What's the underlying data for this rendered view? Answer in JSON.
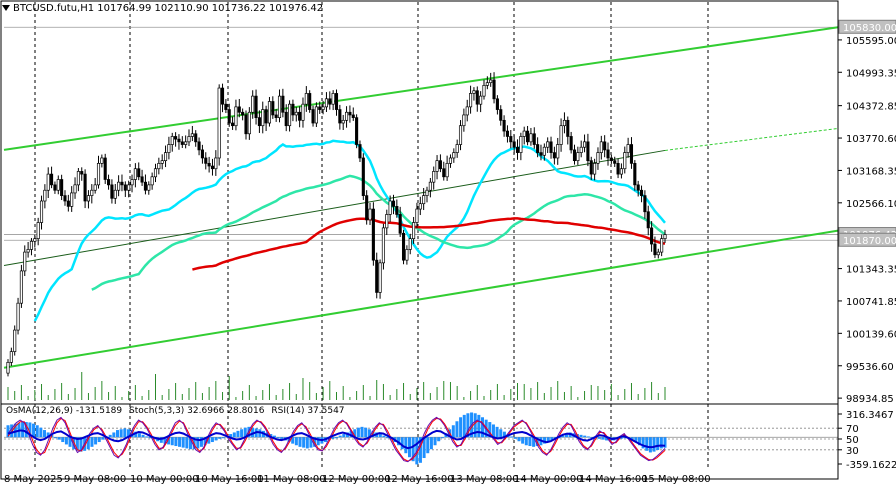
{
  "header": {
    "symbol": "BTCUSD.futu,H1",
    "ohlc": "101764.99 102110.90 101736.22 101976.42"
  },
  "indicators": {
    "osma": "OsMA(12,26,9) -131.5189",
    "stoch": "Stoch(5,3,3) 32.6966 28.8016",
    "rsi": "RSI(14) 37.5547"
  },
  "colors": {
    "bg": "#ffffff",
    "candle": "#000000",
    "grid": "#000000",
    "channel_green": "#32cd32",
    "ma_fast": "#00e5ff",
    "ma_mid": "#2ee6a8",
    "ma_slow": "#e00000",
    "osma_hist": "#1e90ff",
    "stoch_main": "#0000cd",
    "stoch_signal": "#ff0000",
    "rsi_line": "#6a0dad"
  },
  "chart_data": {
    "type": "candlestick",
    "title": "BTCUSD.futu,H1",
    "y_ticks": [
      "105830.00",
      "105595.00",
      "104993.35",
      "104372.85",
      "103770.60",
      "103168.35",
      "102566.10",
      "101976.42",
      "101870.00",
      "101343.35",
      "100741.85",
      "100139.60",
      "99536.60",
      "98934.85"
    ],
    "price_labels": [
      "105830.00",
      "101976.42",
      "101870.00"
    ],
    "x_ticks": [
      "8 May 2025",
      "9 May 08:00",
      "10 May 00:00",
      "10 May 16:00",
      "11 May 08:00",
      "12 May 00:00",
      "12 May 16:00",
      "13 May 08:00",
      "14 May 00:00",
      "14 May 16:00",
      "15 May 08:00"
    ],
    "ylim": [
      98900,
      106300
    ],
    "closes": [
      99600,
      99800,
      100200,
      100700,
      101300,
      101650,
      101700,
      101850,
      101900,
      102200,
      102600,
      102800,
      103100,
      102900,
      102800,
      103000,
      102700,
      102600,
      102500,
      102750,
      102900,
      103150,
      103100,
      102600,
      102700,
      102800,
      102900,
      103300,
      103400,
      103000,
      102900,
      102650,
      102800,
      102950,
      102900,
      102800,
      102900,
      103000,
      103200,
      103050,
      102950,
      102800,
      102900,
      103050,
      103200,
      103300,
      103350,
      103500,
      103650,
      103800,
      103750,
      103700,
      103650,
      103700,
      103800,
      103850,
      103700,
      103550,
      103400,
      103300,
      103250,
      103200,
      103400,
      104700,
      104400,
      104300,
      104050,
      104000,
      104350,
      104250,
      104200,
      103850,
      104250,
      104550,
      104150,
      104000,
      104300,
      104050,
      104450,
      104200,
      104150,
      104550,
      104250,
      104000,
      104400,
      104200,
      104250,
      104100,
      104400,
      104600,
      104300,
      104050,
      104350,
      104300,
      104350,
      104500,
      104400,
      104600,
      104300,
      104050,
      104100,
      104250,
      104200,
      104150,
      103650,
      103400,
      102700,
      102250,
      102450,
      101500,
      100900,
      101450,
      102100,
      102350,
      102600,
      102500,
      102350,
      102000,
      101500,
      101700,
      101900,
      102200,
      102450,
      102550,
      102700,
      102800,
      102950,
      103150,
      103350,
      103200,
      103050,
      103300,
      103400,
      103500,
      103650,
      104000,
      104200,
      104350,
      104600,
      104650,
      104400,
      104550,
      104750,
      104800,
      104850,
      104500,
      104300,
      104100,
      103900,
      103800,
      103700,
      103600,
      103500,
      103800,
      103900,
      103700,
      103850,
      103650,
      103500,
      103450,
      103600,
      103700,
      103500,
      103400,
      103650,
      104000,
      104100,
      103800,
      103550,
      103350,
      103500,
      103600,
      103700,
      103350,
      103100,
      103300,
      103500,
      103700,
      103550,
      103400,
      103350,
      103300,
      103100,
      103200,
      103500,
      103650,
      103300,
      102900,
      102800,
      102700,
      102400,
      102100,
      101800,
      101600,
      101650,
      101900,
      101976
    ],
    "osma": [
      150,
      160,
      170,
      180,
      190,
      190,
      185,
      170,
      150,
      120,
      90,
      60,
      30,
      0,
      -30,
      -60,
      -90,
      -120,
      -150,
      -170,
      -180,
      -170,
      -150,
      -120,
      -90,
      -60,
      -30,
      0,
      30,
      60,
      90,
      100,
      110,
      100,
      90,
      70,
      50,
      30,
      10,
      -10,
      -30,
      -50,
      -70,
      -80,
      -90,
      -100,
      -110,
      -120,
      -130,
      -140,
      -150,
      -150,
      -140,
      -120,
      -100,
      -80,
      -60,
      -40,
      -20,
      0,
      20,
      40,
      60,
      80,
      100,
      120,
      130,
      120,
      110,
      100,
      80,
      60,
      40,
      20,
      0,
      -20,
      -40,
      -60,
      -80,
      -100,
      -120,
      -130,
      -140,
      -130,
      -120,
      -100,
      -80,
      -60,
      -40,
      -20,
      0,
      20,
      40,
      60,
      80,
      100,
      120,
      130,
      120,
      100,
      80,
      60,
      40,
      20,
      0,
      -20,
      -60,
      -100,
      -150,
      -200,
      -250,
      -300,
      -340,
      -320,
      -260,
      -200,
      -150,
      -100,
      -50,
      0,
      50,
      100,
      150,
      200,
      250,
      280,
      300,
      310,
      300,
      280,
      250,
      220,
      190,
      160,
      130,
      100,
      70,
      40,
      10,
      -20,
      -50,
      -80,
      -100,
      -110,
      -120,
      -110,
      -100,
      -80,
      -60,
      -40,
      -20,
      0,
      20,
      40,
      60,
      50,
      40,
      30,
      20,
      10,
      0,
      -10,
      -20,
      -30,
      -40,
      -50,
      -40,
      -30,
      -20,
      -10,
      0,
      -20,
      -60,
      -100,
      -140,
      -170,
      -190,
      -180,
      -160,
      -140,
      -131.5189
    ],
    "stoch_main": [
      60,
      70,
      80,
      85,
      80,
      60,
      40,
      25,
      20,
      30,
      50,
      70,
      85,
      90,
      80,
      60,
      40,
      25,
      30,
      45,
      60,
      70,
      75,
      65,
      50,
      35,
      20,
      15,
      25,
      40,
      60,
      75,
      85,
      80,
      70,
      55,
      40,
      30,
      35,
      50,
      65,
      80,
      85,
      78,
      60,
      45,
      30,
      25,
      35,
      55,
      70,
      80,
      75,
      65,
      50,
      40,
      30,
      35,
      50,
      65,
      78,
      85,
      80,
      70,
      55,
      40,
      30,
      25,
      35,
      50,
      65,
      75,
      80,
      70,
      55,
      40,
      30,
      28,
      40,
      55,
      70,
      80,
      85,
      78,
      65,
      50,
      40,
      35,
      45,
      60,
      72,
      80,
      75,
      60,
      45,
      30,
      20,
      10,
      8,
      15,
      25,
      40,
      60,
      75,
      85,
      90,
      85,
      75,
      60,
      45,
      35,
      40,
      55,
      70,
      80,
      85,
      80,
      70,
      60,
      50,
      40,
      45,
      55,
      65,
      75,
      80,
      85,
      78,
      65,
      50,
      35,
      25,
      20,
      30,
      45,
      60,
      72,
      80,
      75,
      60,
      45,
      35,
      30,
      40,
      55,
      65,
      60,
      50,
      40,
      45,
      55,
      60,
      50,
      40,
      30,
      20,
      15,
      10,
      12,
      18,
      25,
      32.6966
    ],
    "stoch_signal": [
      55,
      65,
      75,
      82,
      82,
      68,
      48,
      30,
      22,
      25,
      42,
      62,
      80,
      88,
      84,
      66,
      46,
      30,
      28,
      40,
      55,
      67,
      73,
      68,
      55,
      40,
      25,
      17,
      22,
      35,
      53,
      70,
      82,
      82,
      73,
      60,
      45,
      33,
      33,
      45,
      60,
      75,
      83,
      80,
      65,
      50,
      35,
      27,
      32,
      50,
      65,
      77,
      77,
      68,
      55,
      43,
      33,
      33,
      45,
      60,
      74,
      83,
      82,
      73,
      60,
      45,
      33,
      27,
      32,
      45,
      60,
      72,
      78,
      73,
      60,
      45,
      33,
      28,
      36,
      50,
      65,
      77,
      83,
      80,
      68,
      55,
      43,
      37,
      42,
      55,
      68,
      78,
      77,
      65,
      50,
      35,
      23,
      13,
      9,
      12,
      21,
      35,
      53,
      70,
      82,
      88,
      87,
      78,
      65,
      50,
      38,
      38,
      50,
      65,
      76,
      83,
      82,
      73,
      63,
      53,
      43,
      43,
      52,
      62,
      72,
      78,
      83,
      80,
      68,
      55,
      40,
      28,
      22,
      27,
      40,
      55,
      68,
      77,
      77,
      65,
      50,
      38,
      32,
      37,
      50,
      62,
      62,
      53,
      43,
      43,
      52,
      58,
      53,
      43,
      33,
      23,
      17,
      12,
      11,
      15,
      22,
      28.8016
    ],
    "rsi": [
      60,
      62,
      64,
      66,
      65,
      60,
      55,
      50,
      48,
      50,
      55,
      60,
      63,
      64,
      60,
      55,
      52,
      50,
      51,
      54,
      57,
      60,
      61,
      58,
      54,
      50,
      47,
      46,
      48,
      52,
      56,
      60,
      63,
      62,
      59,
      55,
      52,
      50,
      51,
      54,
      58,
      61,
      62,
      60,
      56,
      52,
      49,
      48,
      50,
      54,
      58,
      61,
      60,
      57,
      54,
      51,
      49,
      50,
      53,
      57,
      60,
      63,
      62,
      59,
      55,
      52,
      49,
      48,
      50,
      53,
      57,
      60,
      61,
      58,
      54,
      51,
      49,
      48,
      50,
      54,
      57,
      60,
      62,
      60,
      57,
      53,
      50,
      49,
      51,
      55,
      58,
      61,
      60,
      56,
      52,
      47,
      42,
      36,
      33,
      35,
      40,
      46,
      52,
      57,
      62,
      65,
      64,
      60,
      56,
      52,
      49,
      50,
      54,
      58,
      61,
      63,
      62,
      59,
      56,
      53,
      51,
      52,
      55,
      58,
      61,
      62,
      63,
      61,
      57,
      53,
      49,
      46,
      44,
      46,
      50,
      54,
      58,
      60,
      59,
      55,
      51,
      48,
      47,
      50,
      54,
      57,
      56,
      53,
      50,
      51,
      54,
      55,
      52,
      48,
      44,
      40,
      37,
      35,
      35,
      37,
      38,
      37.5547
    ],
    "sub_ticks": [
      "316.3467",
      "70",
      "50",
      "30",
      "-359.1622"
    ]
  }
}
